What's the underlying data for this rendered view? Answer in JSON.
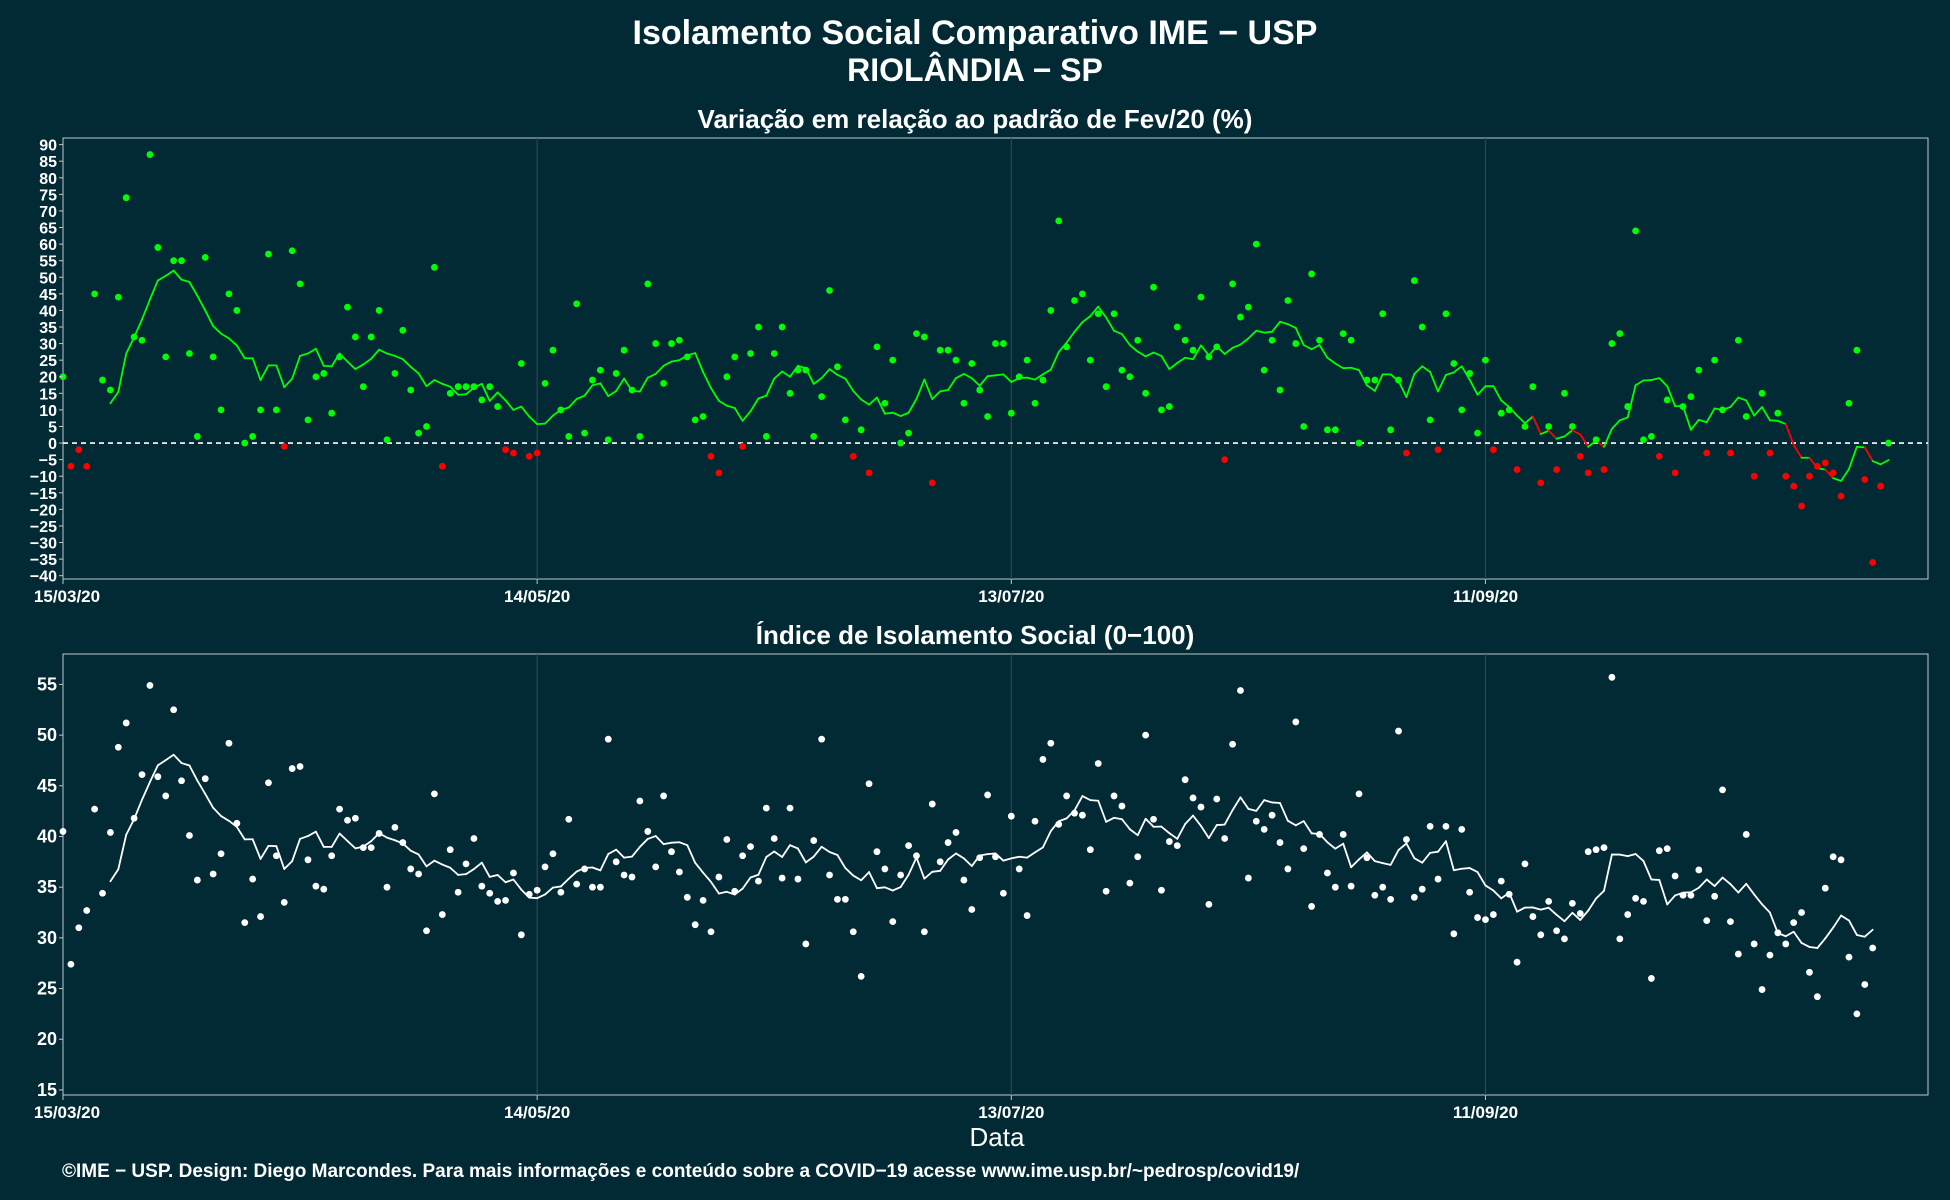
{
  "header": {
    "title": "Isolamento Social Comparativo IME − USP",
    "subtitle": "RIOLÂNDIA − SP"
  },
  "footer": {
    "credit": "©IME − USP. Design: Diego Marcondes. Para mais informações e conteúdo sobre a COVID−19 acesse www.ime.usp.br/~pedrosp/covid19/"
  },
  "colors": {
    "background": "#022a35",
    "positive": "#00ff00",
    "negative": "#ff0000",
    "index": "#ffffff",
    "grid": "#2c4750",
    "axis": "#bfc7c9"
  },
  "chart_data": [
    {
      "type": "scatter",
      "title": "Variação em relação ao padrão de Fev/20 (%)",
      "xlabel": "",
      "ylabel": "",
      "x_tick_labels": [
        "15/03/20",
        "14/05/20",
        "13/07/20",
        "11/09/20"
      ],
      "x_tick_days": [
        0,
        60,
        120,
        180
      ],
      "y_ticks": [
        90,
        85,
        80,
        75,
        70,
        65,
        60,
        55,
        50,
        45,
        40,
        35,
        30,
        25,
        20,
        15,
        10,
        5,
        0,
        -5,
        -10,
        -15,
        -20,
        -25,
        -30,
        -35,
        -40
      ],
      "ylim": [
        -41,
        92
      ],
      "xlim_days": [
        0,
        236
      ],
      "reference_line": 0,
      "grid": true,
      "points": [
        20,
        -7,
        -2,
        -7,
        45,
        19,
        16,
        44,
        74,
        32,
        31,
        87,
        59,
        26,
        55,
        55,
        27,
        2,
        56,
        26,
        10,
        45,
        40,
        0,
        2,
        10,
        57,
        10,
        -1,
        58,
        48,
        7,
        20,
        21,
        9,
        26,
        41,
        32,
        17,
        32,
        40,
        1,
        21,
        34,
        16,
        3,
        5,
        53,
        -7,
        15,
        17,
        17,
        17,
        13,
        17,
        11,
        -2,
        -3,
        24,
        -4,
        -3,
        18,
        28,
        10,
        2,
        42,
        3,
        19,
        22,
        1,
        21,
        28,
        16,
        2,
        48,
        30,
        18,
        30,
        31,
        26,
        7,
        8,
        -4,
        -9,
        20,
        26,
        -1,
        27,
        35,
        2,
        27,
        35,
        15,
        22,
        22,
        2,
        14,
        46,
        23,
        7,
        -4,
        4,
        -9,
        29,
        12,
        25,
        0,
        3,
        33,
        32,
        -12,
        28,
        28,
        25,
        12,
        24,
        16,
        8,
        30,
        30,
        9,
        20,
        25,
        12,
        19,
        40,
        67,
        29,
        43,
        45,
        25,
        39,
        17,
        39,
        22,
        20,
        31,
        15,
        47,
        10,
        11,
        35,
        31,
        28,
        44,
        26,
        29,
        -5,
        48,
        38,
        41,
        60,
        22,
        31,
        16,
        43,
        30,
        5,
        51,
        31,
        4,
        4,
        33,
        31,
        0,
        19,
        19,
        39,
        4,
        19,
        -3,
        49,
        35,
        7,
        -2,
        39,
        24,
        10,
        21,
        3,
        25,
        -2,
        9,
        10,
        -8,
        5,
        17,
        -12,
        5,
        -8,
        15,
        5,
        -4,
        -9,
        1,
        -8,
        30,
        33,
        11,
        64,
        1,
        2,
        -4,
        13,
        -9,
        11,
        14,
        22,
        -3,
        25,
        10,
        -3,
        31,
        8,
        -10,
        15,
        -3,
        9,
        -10,
        -13,
        -19,
        -10,
        -7,
        -6,
        -9,
        -16,
        12,
        28,
        -11,
        -36,
        -13,
        0
      ]
    },
    {
      "type": "scatter",
      "title": "Índice de Isolamento Social (0−100)",
      "xlabel": "Data",
      "ylabel": "",
      "x_tick_labels": [
        "15/03/20",
        "14/05/20",
        "13/07/20",
        "11/09/20"
      ],
      "x_tick_days": [
        0,
        60,
        120,
        180
      ],
      "y_ticks": [
        55,
        50,
        45,
        40,
        35,
        30,
        25,
        20,
        15
      ],
      "ylim": [
        14.5,
        58
      ],
      "xlim_days": [
        0,
        236
      ],
      "grid": true,
      "points": [
        40.5,
        27.4,
        31.0,
        32.7,
        42.7,
        34.4,
        40.4,
        48.8,
        51.2,
        41.8,
        46.1,
        54.9,
        45.9,
        44.0,
        52.5,
        45.5,
        40.1,
        35.7,
        45.7,
        36.3,
        38.3,
        49.2,
        41.3,
        31.5,
        35.8,
        32.1,
        45.3,
        38.1,
        33.5,
        46.7,
        46.9,
        37.7,
        35.1,
        34.8,
        38.1,
        42.7,
        41.6,
        41.8,
        38.9,
        38.9,
        40.3,
        35.0,
        40.9,
        39.4,
        36.8,
        36.3,
        30.7,
        44.2,
        32.3,
        38.7,
        34.5,
        37.3,
        39.8,
        35.1,
        34.4,
        33.6,
        33.7,
        36.4,
        30.3,
        34.3,
        34.7,
        37.0,
        38.3,
        34.5,
        41.7,
        35.3,
        36.8,
        35.0,
        35.0,
        49.6,
        37.5,
        36.2,
        36.0,
        43.5,
        40.5,
        37.0,
        44.0,
        38.5,
        36.5,
        34.0,
        31.3,
        33.7,
        30.6,
        36.0,
        39.7,
        34.6,
        38.1,
        39.0,
        35.6,
        42.8,
        39.8,
        35.9,
        42.8,
        35.8,
        29.4,
        39.6,
        49.6,
        36.2,
        33.8,
        33.8,
        30.6,
        26.2,
        45.2,
        38.5,
        36.8,
        31.6,
        36.2,
        39.1,
        38.1,
        30.6,
        43.2,
        37.5,
        39.4,
        40.4,
        35.7,
        32.8,
        37.9,
        44.1,
        38.0,
        34.4,
        42.0,
        36.8,
        32.2,
        41.5,
        47.6,
        49.2,
        41.2,
        44.0,
        42.3,
        42.1,
        38.7,
        47.2,
        34.6,
        44.0,
        43.0,
        35.4,
        38.0,
        50.0,
        41.7,
        34.7,
        39.5,
        39.1,
        45.6,
        43.8,
        42.9,
        33.3,
        43.7,
        39.8,
        49.1,
        54.4,
        35.9,
        41.5,
        40.7,
        42.1,
        39.4,
        36.8,
        51.3,
        38.8,
        33.1,
        40.2,
        36.4,
        35.0,
        40.2,
        35.1,
        44.2,
        37.9,
        34.2,
        35.0,
        33.8,
        50.4,
        39.7,
        34.0,
        34.8,
        41.0,
        35.8,
        41.0,
        30.4,
        40.7,
        34.5,
        32.0,
        31.8,
        32.3,
        35.6,
        34.3,
        27.6,
        37.3,
        32.1,
        30.3,
        33.6,
        30.7,
        29.9,
        33.4,
        32.4,
        38.5,
        38.7,
        38.9,
        55.7,
        29.9,
        32.3,
        33.9,
        33.6,
        26.0,
        38.6,
        38.8,
        36.1,
        34.2,
        34.2,
        36.7,
        31.7,
        34.1,
        44.6,
        31.6,
        28.4,
        40.2,
        29.4,
        24.9,
        28.3,
        30.5,
        29.4,
        31.5,
        32.5,
        26.6,
        24.2,
        34.9,
        38.0,
        37.7,
        28.1,
        22.5,
        25.4,
        29.0
      ]
    }
  ]
}
